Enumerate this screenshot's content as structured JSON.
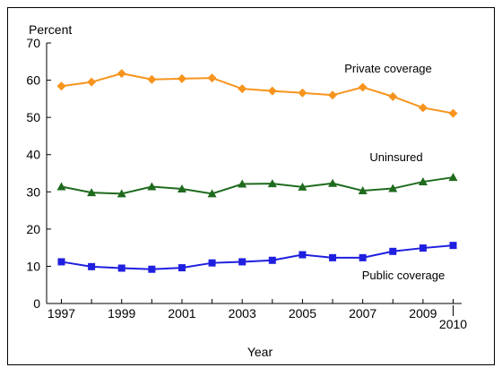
{
  "chart_data": {
    "type": "line",
    "ylabel": "Percent",
    "xlabel": "Year",
    "ylim": [
      0,
      70
    ],
    "yticks": [
      0,
      10,
      20,
      30,
      40,
      50,
      60,
      70
    ],
    "x": [
      1997,
      1998,
      1999,
      2000,
      2001,
      2002,
      2003,
      2004,
      2005,
      2006,
      2007,
      2008,
      2009,
      2010
    ],
    "xtick_labels": [
      "1997",
      "1999",
      "2001",
      "2003",
      "2005",
      "2007",
      "2009",
      "2010"
    ],
    "grid": false,
    "series": [
      {
        "name": "Private coverage",
        "color": "#F7941D",
        "marker": "diamond",
        "values": [
          58.4,
          59.5,
          61.8,
          60.2,
          60.4,
          60.6,
          57.7,
          57.1,
          56.6,
          56.0,
          58.1,
          55.6,
          52.6,
          51.1
        ]
      },
      {
        "name": "Uninsured",
        "color": "#1E6B1E",
        "marker": "triangle",
        "values": [
          31.4,
          29.8,
          29.5,
          31.4,
          30.8,
          29.5,
          32.1,
          32.2,
          31.3,
          32.3,
          30.3,
          30.9,
          32.7,
          33.9
        ]
      },
      {
        "name": "Public coverage",
        "color": "#1F1FE0",
        "marker": "square",
        "values": [
          11.2,
          9.9,
          9.5,
          9.2,
          9.6,
          10.9,
          11.2,
          11.6,
          13.1,
          12.3,
          12.3,
          14.0,
          14.9,
          15.6
        ]
      }
    ]
  }
}
